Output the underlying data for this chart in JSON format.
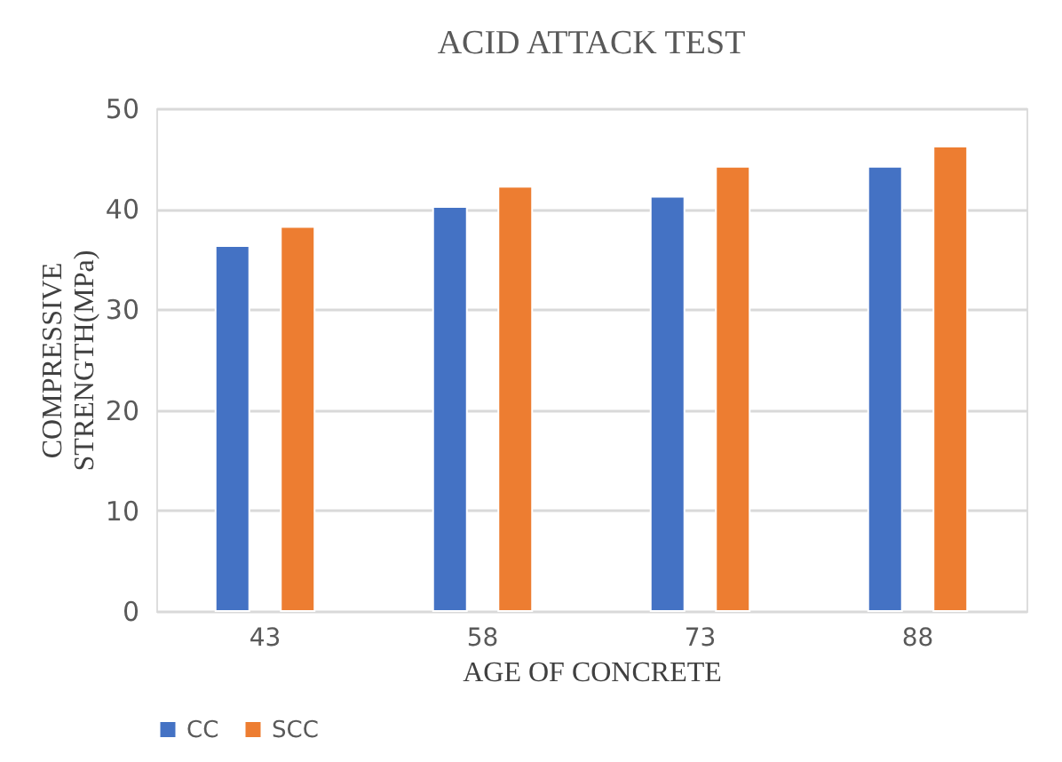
{
  "chart_data": {
    "type": "bar",
    "title": "ACID ATTACK TEST",
    "xlabel": "AGE OF CONCRETE",
    "ylabel": "COMPRESSIVE\nSTRENGTH(MPa)",
    "categories": [
      "43",
      "58",
      "73",
      "88"
    ],
    "series": [
      {
        "name": "CC",
        "color": "#4472c4",
        "values": [
          36.3,
          40.2,
          41.2,
          44.2
        ]
      },
      {
        "name": "SCC",
        "color": "#ed7d31",
        "values": [
          38.2,
          42.2,
          44.2,
          46.2
        ]
      }
    ],
    "ylim": [
      0,
      50
    ],
    "yticks": [
      0,
      10,
      20,
      30,
      40,
      50
    ],
    "grid": "y",
    "legend": "bottom"
  }
}
